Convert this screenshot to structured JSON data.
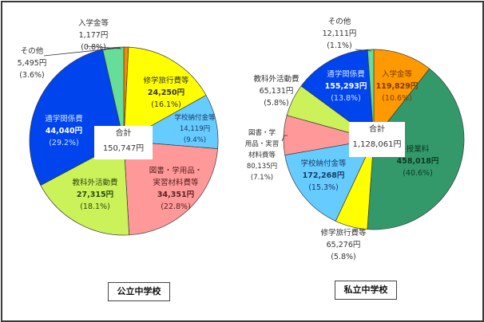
{
  "chart_data": [
    {
      "type": "pie",
      "title": "公立中学校",
      "total_label": "合計",
      "total_value": "150,747円",
      "total": 150747,
      "start_angle": -90,
      "direction": "clockwise",
      "slices": [
        {
          "label": "入学金等",
          "value": 1177,
          "value_text": "1,177円",
          "pct": 0.8,
          "pct_text": "(0.8%)",
          "color": "#F28C00"
        },
        {
          "label": "修学旅行費等",
          "value": 24250,
          "value_text": "24,250円",
          "pct": 16.1,
          "pct_text": "(16.1%)",
          "color": "#FFFF00"
        },
        {
          "label": "学校納付金等",
          "value": 14119,
          "value_text": "14,119円",
          "pct": 9.4,
          "pct_text": "(9.4%)",
          "color": "#66CCFF"
        },
        {
          "label": "図書・学用品・実習材料費等",
          "value": 34351,
          "value_text": "34,351円",
          "pct": 22.8,
          "pct_text": "(22.8%)",
          "color": "#FF9999"
        },
        {
          "label": "教科外活動費",
          "value": 27315,
          "value_text": "27,315円",
          "pct": 18.1,
          "pct_text": "(18.1%)",
          "color": "#CCF25A"
        },
        {
          "label": "通学関係費",
          "value": 44040,
          "value_text": "44,040円",
          "pct": 29.2,
          "pct_text": "(29.2%)",
          "color": "#0044EE"
        },
        {
          "label": "その他",
          "value": 5495,
          "value_text": "5,495円",
          "pct": 3.6,
          "pct_text": "(3.6%)",
          "color": "#66DD99"
        }
      ]
    },
    {
      "type": "pie",
      "title": "私立中学校",
      "total_label": "合計",
      "total_value": "1,128,061円",
      "total": 1128061,
      "start_angle": -90,
      "direction": "clockwise",
      "slices": [
        {
          "label": "入学金等",
          "value": 119829,
          "value_text": "119,829円",
          "pct": 10.6,
          "pct_text": "(10.6%)",
          "color": "#FF9900"
        },
        {
          "label": "授業料",
          "value": 458018,
          "value_text": "458,018円",
          "pct": 40.6,
          "pct_text": "(40.6%)",
          "color": "#33996B"
        },
        {
          "label": "修学旅行費等",
          "value": 65276,
          "value_text": "65,276円",
          "pct": 5.8,
          "pct_text": "(5.8%)",
          "color": "#FFFF00"
        },
        {
          "label": "学校納付金等",
          "value": 172268,
          "value_text": "172,268円",
          "pct": 15.3,
          "pct_text": "(15.3%)",
          "color": "#66CCFF"
        },
        {
          "label": "図書・学用品・実習材料費等",
          "value": 80135,
          "value_text": "80,135円",
          "pct": 7.1,
          "pct_text": "(7.1%)",
          "color": "#FF9999"
        },
        {
          "label": "教科外活動費",
          "value": 65131,
          "value_text": "65,131円",
          "pct": 5.8,
          "pct_text": "(5.8%)",
          "color": "#CCF25A"
        },
        {
          "label": "通学関係費",
          "value": 155293,
          "value_text": "155,293円",
          "pct": 13.8,
          "pct_text": "(13.8%)",
          "color": "#0044EE"
        },
        {
          "label": "その他",
          "value": 12111,
          "value_text": "12,111円",
          "pct": 1.1,
          "pct_text": "(1.1%)",
          "color": "#66DD99"
        }
      ]
    }
  ],
  "labels": {
    "public": {
      "school": "公立中学校",
      "total_label": "合計",
      "total_value": "150,747円",
      "nyugaku": {
        "name": "入学金等",
        "value": "1,177円",
        "pct": "(0.8%)"
      },
      "shugaku": {
        "name": "修学旅行費等",
        "value": "24,250円",
        "pct": "(16.1%)"
      },
      "nofu": {
        "name": "学校納付金等",
        "value": "14,119円",
        "pct": "(9.4%)"
      },
      "tosho": {
        "name1": "図書・学用品・",
        "name2": "実習材料費等",
        "value": "34,351円",
        "pct": "(22.8%)"
      },
      "kyokagai": {
        "name": "教科外活動費",
        "value": "27,315円",
        "pct": "(18.1%)"
      },
      "tsugaku": {
        "name": "通学関係費",
        "value": "44,040円",
        "pct": "(29.2%)"
      },
      "sonota": {
        "name": "その他",
        "value": "5,495円",
        "pct": "(3.6%)"
      }
    },
    "private": {
      "school": "私立中学校",
      "total_label": "合計",
      "total_value": "1,128,061円",
      "sonota": {
        "name": "その他",
        "value": "12,111円",
        "pct": "(1.1%)"
      },
      "nyugaku": {
        "name": "入学金等",
        "value": "119,829円",
        "pct": "(10.6%)"
      },
      "jugyo": {
        "name": "授業料",
        "value": "458,018円",
        "pct": "(40.6%)"
      },
      "shugaku": {
        "name": "修学旅行費等",
        "value": "65,276円",
        "pct": "(5.8%)"
      },
      "nofu": {
        "name": "学校納付金等",
        "value": "172,268円",
        "pct": "(15.3%)"
      },
      "tosho": {
        "name1": "図書・学",
        "name2": "用品・実習",
        "name3": "材料費等",
        "value": "80,135円",
        "pct": "(7.1%)"
      },
      "kyokagai": {
        "name": "教科外活動費",
        "value": "65,131円",
        "pct": "(5.8%)"
      },
      "tsugaku": {
        "name": "通学関係費",
        "value": "155,293円",
        "pct": "(13.8%)"
      }
    }
  }
}
